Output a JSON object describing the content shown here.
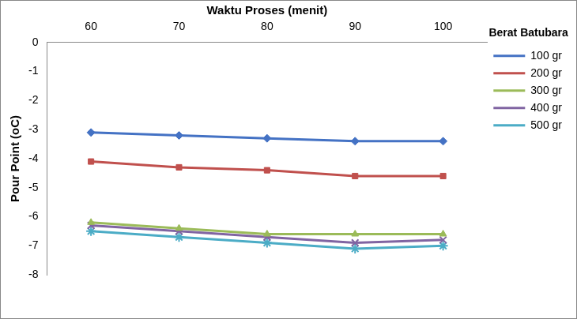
{
  "chart_data": {
    "type": "line",
    "x_label": "Waktu Proses (menit)",
    "y_label": "Pour Point (oC)",
    "legend_title": "Berat Batubara",
    "legend": "right",
    "grid": false,
    "categories": [
      "60",
      "70",
      "80",
      "90",
      "100"
    ],
    "ylim": [
      -8,
      0
    ],
    "yticks": [
      -8,
      -7,
      -6,
      -5,
      -4,
      -3,
      -2,
      -1,
      0
    ],
    "series": [
      {
        "name": "100 gr",
        "color": "#4472c4",
        "marker": "diamond",
        "values": [
          -3.1,
          -3.2,
          -3.3,
          -3.4,
          -3.4
        ]
      },
      {
        "name": "200 gr",
        "color": "#c0504d",
        "marker": "square",
        "values": [
          -4.1,
          -4.3,
          -4.4,
          -4.6,
          -4.6
        ]
      },
      {
        "name": "300 gr",
        "color": "#9bbb59",
        "marker": "triangle",
        "values": [
          -6.2,
          -6.4,
          -6.6,
          -6.6,
          -6.6
        ]
      },
      {
        "name": "400 gr",
        "color": "#8064a2",
        "marker": "x",
        "values": [
          -6.3,
          -6.5,
          -6.7,
          -6.9,
          -6.8
        ]
      },
      {
        "name": "500 gr",
        "color": "#4bacc6",
        "marker": "star",
        "values": [
          -6.5,
          -6.7,
          -6.9,
          -7.1,
          -7.0
        ]
      }
    ]
  }
}
